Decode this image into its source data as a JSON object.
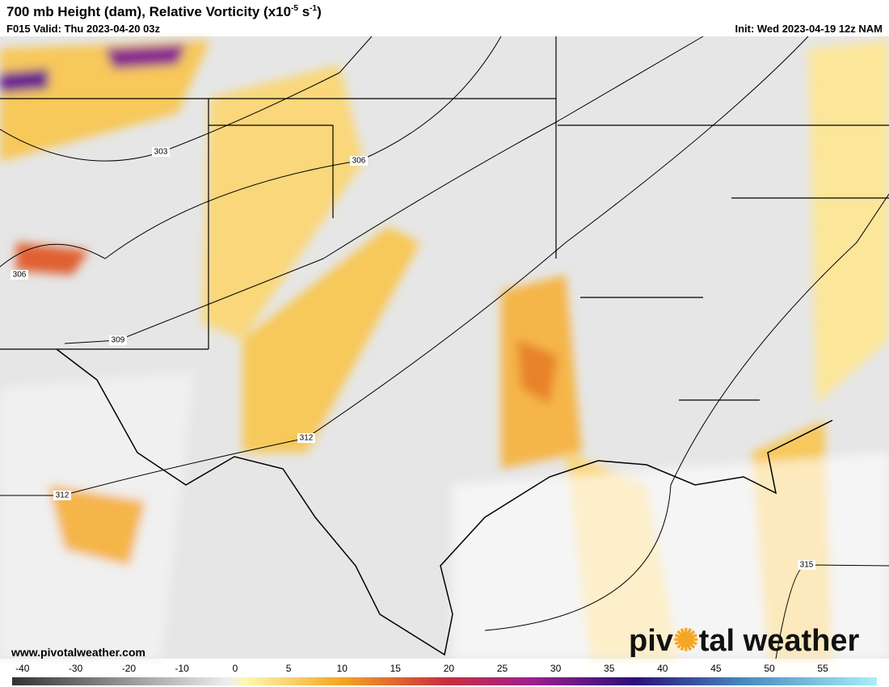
{
  "header": {
    "title_main": "700 mb Height (dam), Relative Vorticity (x10",
    "title_exp1": "-5",
    "title_unit": " s",
    "title_exp2": "-1",
    "title_close": ")",
    "valid": "F015 Valid: Thu 2023-04-20 03z",
    "init": "Init: Wed 2023-04-19 12z NAM"
  },
  "map": {
    "contour_labels": [
      "303",
      "306",
      "306",
      "309",
      "312",
      "312",
      "315"
    ]
  },
  "colorbar": {
    "ticks": [
      "-40",
      "-30",
      "-20",
      "-10",
      "0",
      "5",
      "10",
      "15",
      "20",
      "25",
      "30",
      "35",
      "40",
      "45",
      "50",
      "55"
    ]
  },
  "footer": {
    "url": "www.pivotalweather.com",
    "logo_left": "piv",
    "logo_right": "tal weather"
  }
}
